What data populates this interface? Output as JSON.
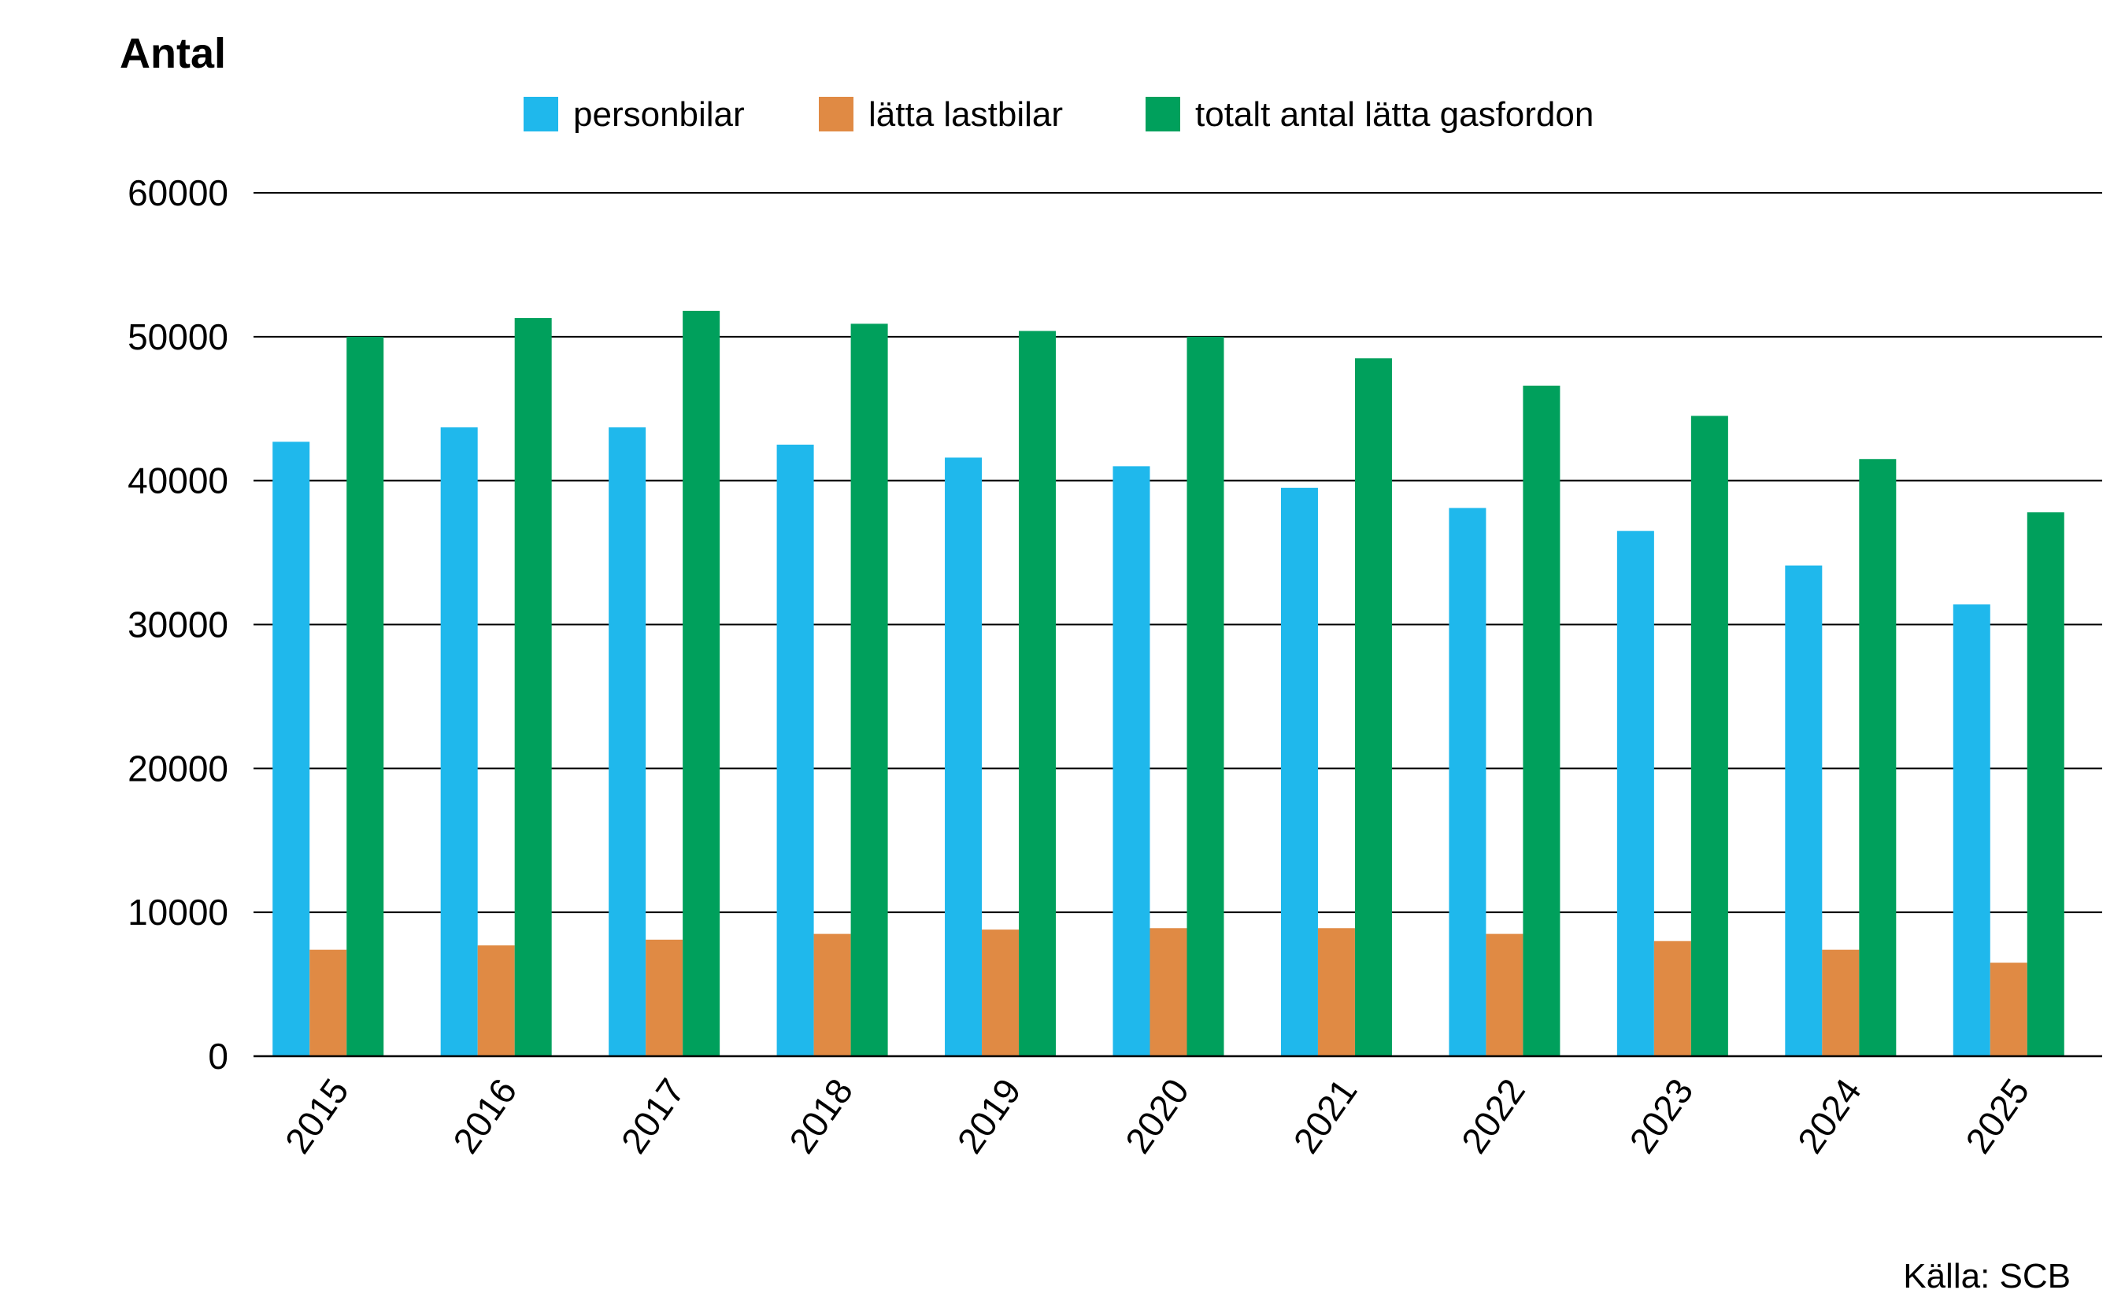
{
  "chart_data": {
    "type": "bar",
    "title": "",
    "ylabel": "Antal",
    "xlabel": "",
    "source": "Källa: SCB",
    "categories": [
      "2015",
      "2016",
      "2017",
      "2018",
      "2019",
      "2020",
      "2021",
      "2022",
      "2023",
      "2024",
      "2025"
    ],
    "series": [
      {
        "name": "personbilar",
        "color": "#1FB8EC",
        "values": [
          42700,
          43700,
          43700,
          42500,
          41600,
          41000,
          39500,
          38100,
          36500,
          34100,
          31400
        ]
      },
      {
        "name": "lätta lastbilar",
        "color": "#E08A44",
        "values": [
          7400,
          7700,
          8100,
          8500,
          8800,
          8900,
          8900,
          8500,
          8000,
          7400,
          6500
        ]
      },
      {
        "name": "totalt antal lätta gasfordon",
        "color": "#00A05C",
        "values": [
          50000,
          51300,
          51800,
          50900,
          50400,
          50000,
          48500,
          46600,
          44500,
          41500,
          37800
        ]
      }
    ],
    "ylim": [
      0,
      60000
    ],
    "yticks": [
      "0",
      "10000",
      "20000",
      "30000",
      "40000",
      "50000",
      "60000"
    ],
    "grid": true,
    "legend_position": "top"
  }
}
